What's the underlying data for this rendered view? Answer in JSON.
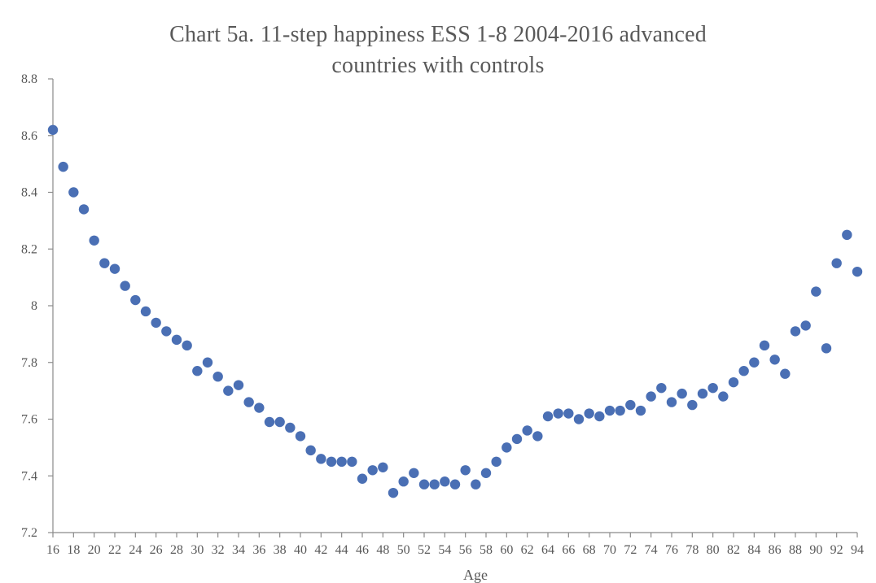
{
  "chart_data": {
    "type": "scatter",
    "title_line1": "Chart 5a.  11-step happiness ESS 1-8 2004-2016 advanced",
    "title_line2": "countries with controls",
    "xlabel": "Age",
    "ylabel": "",
    "xlim": [
      16,
      94
    ],
    "ylim": [
      7.2,
      8.8
    ],
    "x_ticks": [
      16,
      18,
      20,
      22,
      24,
      26,
      28,
      30,
      32,
      34,
      36,
      38,
      40,
      42,
      44,
      46,
      48,
      50,
      52,
      54,
      56,
      58,
      60,
      62,
      64,
      66,
      68,
      70,
      72,
      74,
      76,
      78,
      80,
      82,
      84,
      86,
      88,
      90,
      92,
      94
    ],
    "y_ticks": [
      7.2,
      7.4,
      7.6,
      7.8,
      8,
      8.2,
      8.4,
      8.6,
      8.8
    ],
    "y_tick_labels": [
      "7.2",
      "7.4",
      "7.6",
      "7.8",
      "8",
      "8.2",
      "8.4",
      "8.6",
      "8.8"
    ],
    "grid": false,
    "marker_color": "#4a6fb4",
    "axis_color": "#8a8a8a",
    "text_color": "#595959",
    "series": [
      {
        "x": [
          16,
          17,
          18,
          19,
          20,
          21,
          22,
          23,
          24,
          25,
          26,
          27,
          28,
          29,
          30,
          31,
          32,
          33,
          34,
          35,
          36,
          37,
          38,
          39,
          40,
          41,
          42,
          43,
          44,
          45,
          46,
          47,
          48,
          49,
          50,
          51,
          52,
          53,
          54,
          55,
          56,
          57,
          58,
          59,
          60,
          61,
          62,
          63,
          64,
          65,
          66,
          67,
          68,
          69,
          70,
          71,
          72,
          73,
          74,
          75,
          76,
          77,
          78,
          79,
          80,
          81,
          82,
          83,
          84,
          85,
          86,
          87,
          88,
          89,
          90,
          91,
          92,
          93,
          94
        ],
        "y": [
          8.62,
          8.49,
          8.4,
          8.34,
          8.23,
          8.15,
          8.13,
          8.07,
          8.02,
          7.98,
          7.94,
          7.91,
          7.88,
          7.86,
          7.77,
          7.8,
          7.75,
          7.7,
          7.72,
          7.66,
          7.64,
          7.59,
          7.59,
          7.57,
          7.54,
          7.49,
          7.46,
          7.45,
          7.45,
          7.45,
          7.39,
          7.42,
          7.43,
          7.34,
          7.38,
          7.41,
          7.37,
          7.37,
          7.38,
          7.37,
          7.42,
          7.37,
          7.41,
          7.45,
          7.5,
          7.53,
          7.56,
          7.54,
          7.61,
          7.62,
          7.62,
          7.6,
          7.62,
          7.61,
          7.63,
          7.63,
          7.65,
          7.63,
          7.68,
          7.71,
          7.66,
          7.69,
          7.65,
          7.69,
          7.71,
          7.68,
          7.73,
          7.77,
          7.8,
          7.86,
          7.81,
          7.76,
          7.91,
          7.93,
          8.05,
          7.85,
          8.15,
          8.25,
          8.12
        ]
      }
    ]
  }
}
